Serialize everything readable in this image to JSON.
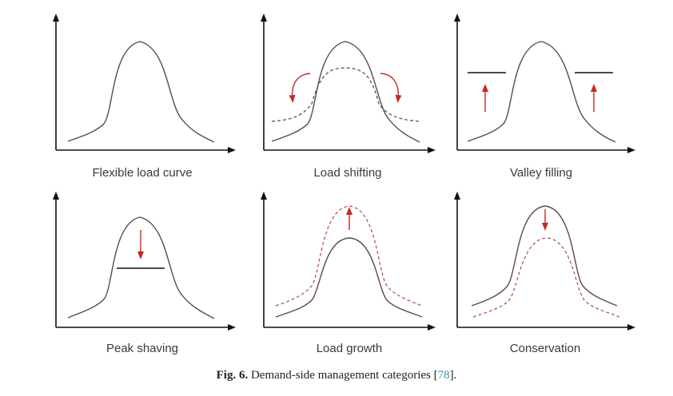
{
  "figure": {
    "caption_number": "Fig. 6.",
    "caption_text": "Demand-side management categories [",
    "caption_ref": "78",
    "caption_end": "].",
    "colors": {
      "axis": "#111111",
      "curve": "#5a4a4a",
      "shifted": "#4a4a4a",
      "arrow": "#c62828",
      "dashed_red": "#b04a4a"
    },
    "panels": [
      {
        "label": "Flexible load curve"
      },
      {
        "label": "Load shifting"
      },
      {
        "label": "Valley filling"
      },
      {
        "label": "Peak shaving"
      },
      {
        "label": "Load growth"
      },
      {
        "label": "Conservation"
      }
    ]
  }
}
